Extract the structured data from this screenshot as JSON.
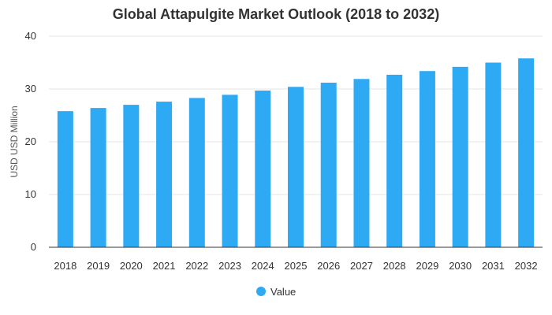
{
  "chart_data": {
    "type": "bar",
    "title": "Global Attapulgite Market Outlook (2018 to 2032)",
    "xlabel": "",
    "ylabel": "USD USD Million",
    "categories": [
      "2018",
      "2019",
      "2020",
      "2021",
      "2022",
      "2023",
      "2024",
      "2025",
      "2026",
      "2027",
      "2028",
      "2029",
      "2030",
      "2031",
      "2032"
    ],
    "series": [
      {
        "name": "Value",
        "color": "#2eaaf5",
        "values": [
          25.8,
          26.4,
          27.0,
          27.6,
          28.3,
          28.9,
          29.7,
          30.4,
          31.2,
          31.9,
          32.7,
          33.4,
          34.2,
          35.0,
          35.8
        ]
      }
    ],
    "ylim": [
      0,
      40
    ],
    "yticks": [
      0,
      10,
      20,
      30,
      40
    ],
    "grid": true,
    "legend_position": "bottom-center"
  }
}
